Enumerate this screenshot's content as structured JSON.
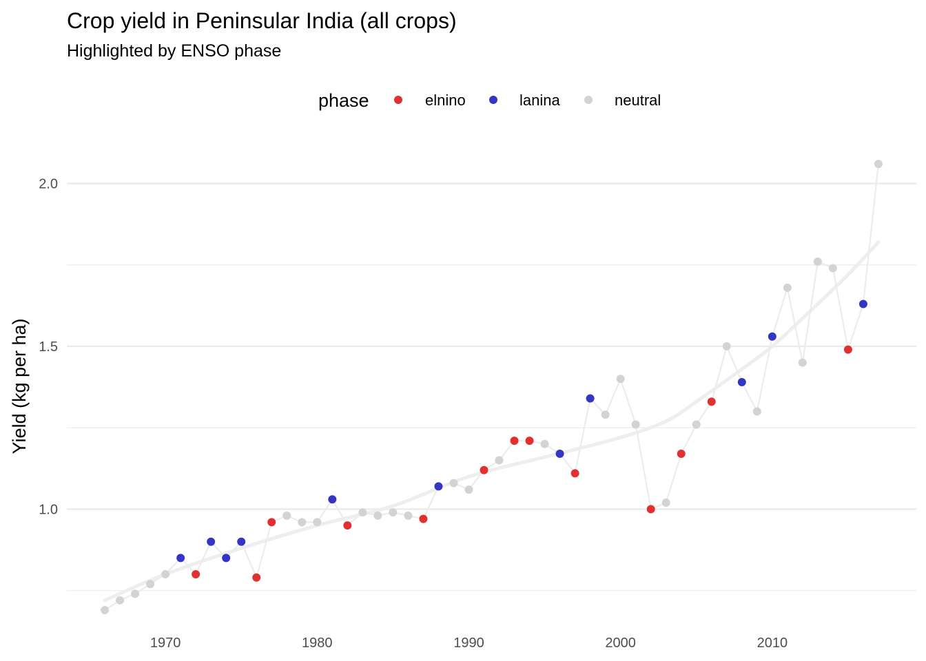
{
  "chart_data": {
    "type": "line",
    "title": "Crop yield in Peninsular India (all crops)",
    "subtitle": "Highlighted by ENSO phase",
    "xlabel": "",
    "ylabel": "Yield (kg per ha)",
    "xlim": [
      1963.5,
      2019.5
    ],
    "ylim": [
      0.65,
      2.13
    ],
    "x_ticks": [
      1970,
      1980,
      1990,
      2000,
      2010
    ],
    "y_ticks": [
      1.0,
      1.5,
      2.0
    ],
    "y_tick_labels": [
      "1.0",
      "1.5",
      "2.0"
    ],
    "y_minor_gridlines": [
      0.75,
      1.25,
      1.75
    ],
    "grid": true,
    "legend": {
      "title": "phase",
      "position": "top",
      "entries": [
        {
          "key": "elnino",
          "label": "elnino",
          "color": "#e03030"
        },
        {
          "key": "lanina",
          "label": "lanina",
          "color": "#3535c4"
        },
        {
          "key": "neutral",
          "label": "neutral",
          "color": "#d3d3d3"
        }
      ]
    },
    "series": [
      {
        "type": "line+points",
        "line_color": "#ececec",
        "points": [
          {
            "x": 1966,
            "y": 0.69,
            "phase": "neutral"
          },
          {
            "x": 1967,
            "y": 0.72,
            "phase": "neutral"
          },
          {
            "x": 1968,
            "y": 0.74,
            "phase": "neutral"
          },
          {
            "x": 1969,
            "y": 0.77,
            "phase": "neutral"
          },
          {
            "x": 1970,
            "y": 0.8,
            "phase": "neutral"
          },
          {
            "x": 1971,
            "y": 0.85,
            "phase": "lanina"
          },
          {
            "x": 1972,
            "y": 0.8,
            "phase": "elnino"
          },
          {
            "x": 1973,
            "y": 0.9,
            "phase": "lanina"
          },
          {
            "x": 1974,
            "y": 0.85,
            "phase": "lanina"
          },
          {
            "x": 1975,
            "y": 0.9,
            "phase": "lanina"
          },
          {
            "x": 1976,
            "y": 0.79,
            "phase": "elnino"
          },
          {
            "x": 1977,
            "y": 0.96,
            "phase": "elnino"
          },
          {
            "x": 1978,
            "y": 0.98,
            "phase": "neutral"
          },
          {
            "x": 1979,
            "y": 0.96,
            "phase": "neutral"
          },
          {
            "x": 1980,
            "y": 0.96,
            "phase": "neutral"
          },
          {
            "x": 1981,
            "y": 1.03,
            "phase": "lanina"
          },
          {
            "x": 1982,
            "y": 0.95,
            "phase": "elnino"
          },
          {
            "x": 1983,
            "y": 0.99,
            "phase": "neutral"
          },
          {
            "x": 1984,
            "y": 0.98,
            "phase": "neutral"
          },
          {
            "x": 1985,
            "y": 0.99,
            "phase": "neutral"
          },
          {
            "x": 1986,
            "y": 0.98,
            "phase": "neutral"
          },
          {
            "x": 1987,
            "y": 0.97,
            "phase": "elnino"
          },
          {
            "x": 1988,
            "y": 1.07,
            "phase": "lanina"
          },
          {
            "x": 1989,
            "y": 1.08,
            "phase": "neutral"
          },
          {
            "x": 1990,
            "y": 1.06,
            "phase": "neutral"
          },
          {
            "x": 1991,
            "y": 1.12,
            "phase": "elnino"
          },
          {
            "x": 1992,
            "y": 1.15,
            "phase": "neutral"
          },
          {
            "x": 1993,
            "y": 1.21,
            "phase": "elnino"
          },
          {
            "x": 1994,
            "y": 1.21,
            "phase": "elnino"
          },
          {
            "x": 1995,
            "y": 1.2,
            "phase": "neutral"
          },
          {
            "x": 1996,
            "y": 1.17,
            "phase": "lanina"
          },
          {
            "x": 1997,
            "y": 1.11,
            "phase": "elnino"
          },
          {
            "x": 1998,
            "y": 1.34,
            "phase": "lanina"
          },
          {
            "x": 1999,
            "y": 1.29,
            "phase": "neutral"
          },
          {
            "x": 2000,
            "y": 1.4,
            "phase": "neutral"
          },
          {
            "x": 2001,
            "y": 1.26,
            "phase": "neutral"
          },
          {
            "x": 2002,
            "y": 1.0,
            "phase": "elnino"
          },
          {
            "x": 2003,
            "y": 1.02,
            "phase": "neutral"
          },
          {
            "x": 2004,
            "y": 1.17,
            "phase": "elnino"
          },
          {
            "x": 2005,
            "y": 1.26,
            "phase": "neutral"
          },
          {
            "x": 2006,
            "y": 1.33,
            "phase": "elnino"
          },
          {
            "x": 2007,
            "y": 1.5,
            "phase": "neutral"
          },
          {
            "x": 2008,
            "y": 1.39,
            "phase": "lanina"
          },
          {
            "x": 2009,
            "y": 1.3,
            "phase": "neutral"
          },
          {
            "x": 2010,
            "y": 1.53,
            "phase": "lanina"
          },
          {
            "x": 2011,
            "y": 1.68,
            "phase": "neutral"
          },
          {
            "x": 2012,
            "y": 1.45,
            "phase": "neutral"
          },
          {
            "x": 2013,
            "y": 1.76,
            "phase": "neutral"
          },
          {
            "x": 2014,
            "y": 1.74,
            "phase": "neutral"
          },
          {
            "x": 2015,
            "y": 1.49,
            "phase": "elnino"
          },
          {
            "x": 2016,
            "y": 1.63,
            "phase": "lanina"
          },
          {
            "x": 2017,
            "y": 2.06,
            "phase": "neutral"
          }
        ]
      },
      {
        "type": "smooth-trend",
        "line_color": "#eeeeee",
        "x": [
          1966,
          1970,
          1975,
          1980,
          1985,
          1990,
          1995,
          2000,
          2003,
          2005,
          2008,
          2010,
          2013,
          2015,
          2017
        ],
        "y": [
          0.72,
          0.8,
          0.88,
          0.95,
          1.01,
          1.1,
          1.16,
          1.22,
          1.27,
          1.33,
          1.43,
          1.5,
          1.63,
          1.72,
          1.82
        ]
      }
    ]
  }
}
